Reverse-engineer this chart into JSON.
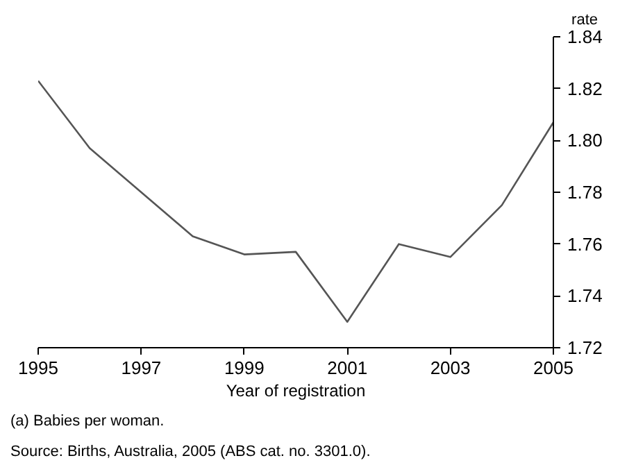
{
  "chart_data": {
    "type": "line",
    "xlabel": "Year of registration",
    "ylabel": "rate",
    "x": [
      1995,
      1996,
      1997,
      1998,
      1999,
      2000,
      2001,
      2002,
      2003,
      2004,
      2005
    ],
    "series": [
      {
        "color": "#555555",
        "values": [
          1.823,
          1.797,
          1.78,
          1.763,
          1.756,
          1.757,
          1.73,
          1.76,
          1.755,
          1.775,
          1.807
        ]
      }
    ],
    "xlim": [
      1995,
      2005
    ],
    "xticks": [
      1995,
      1997,
      1999,
      2001,
      2003,
      2005
    ],
    "ylim": [
      1.72,
      1.84
    ],
    "yticks": [
      {
        "value": 1.72,
        "label": "1.72"
      },
      {
        "value": 1.74,
        "label": "1.74"
      },
      {
        "value": 1.76,
        "label": "1.76"
      },
      {
        "value": 1.78,
        "label": "1.78"
      },
      {
        "value": 1.8,
        "label": "1.80"
      },
      {
        "value": 1.82,
        "label": "1.82"
      },
      {
        "value": 1.84,
        "label": "1.84"
      }
    ],
    "grid": false,
    "marker": "none",
    "line_style": "solid",
    "annotations": [
      "(a) Babies per woman.",
      "Source: Births, Australia, 2005 (ABS cat. no. 3301.0)."
    ]
  }
}
